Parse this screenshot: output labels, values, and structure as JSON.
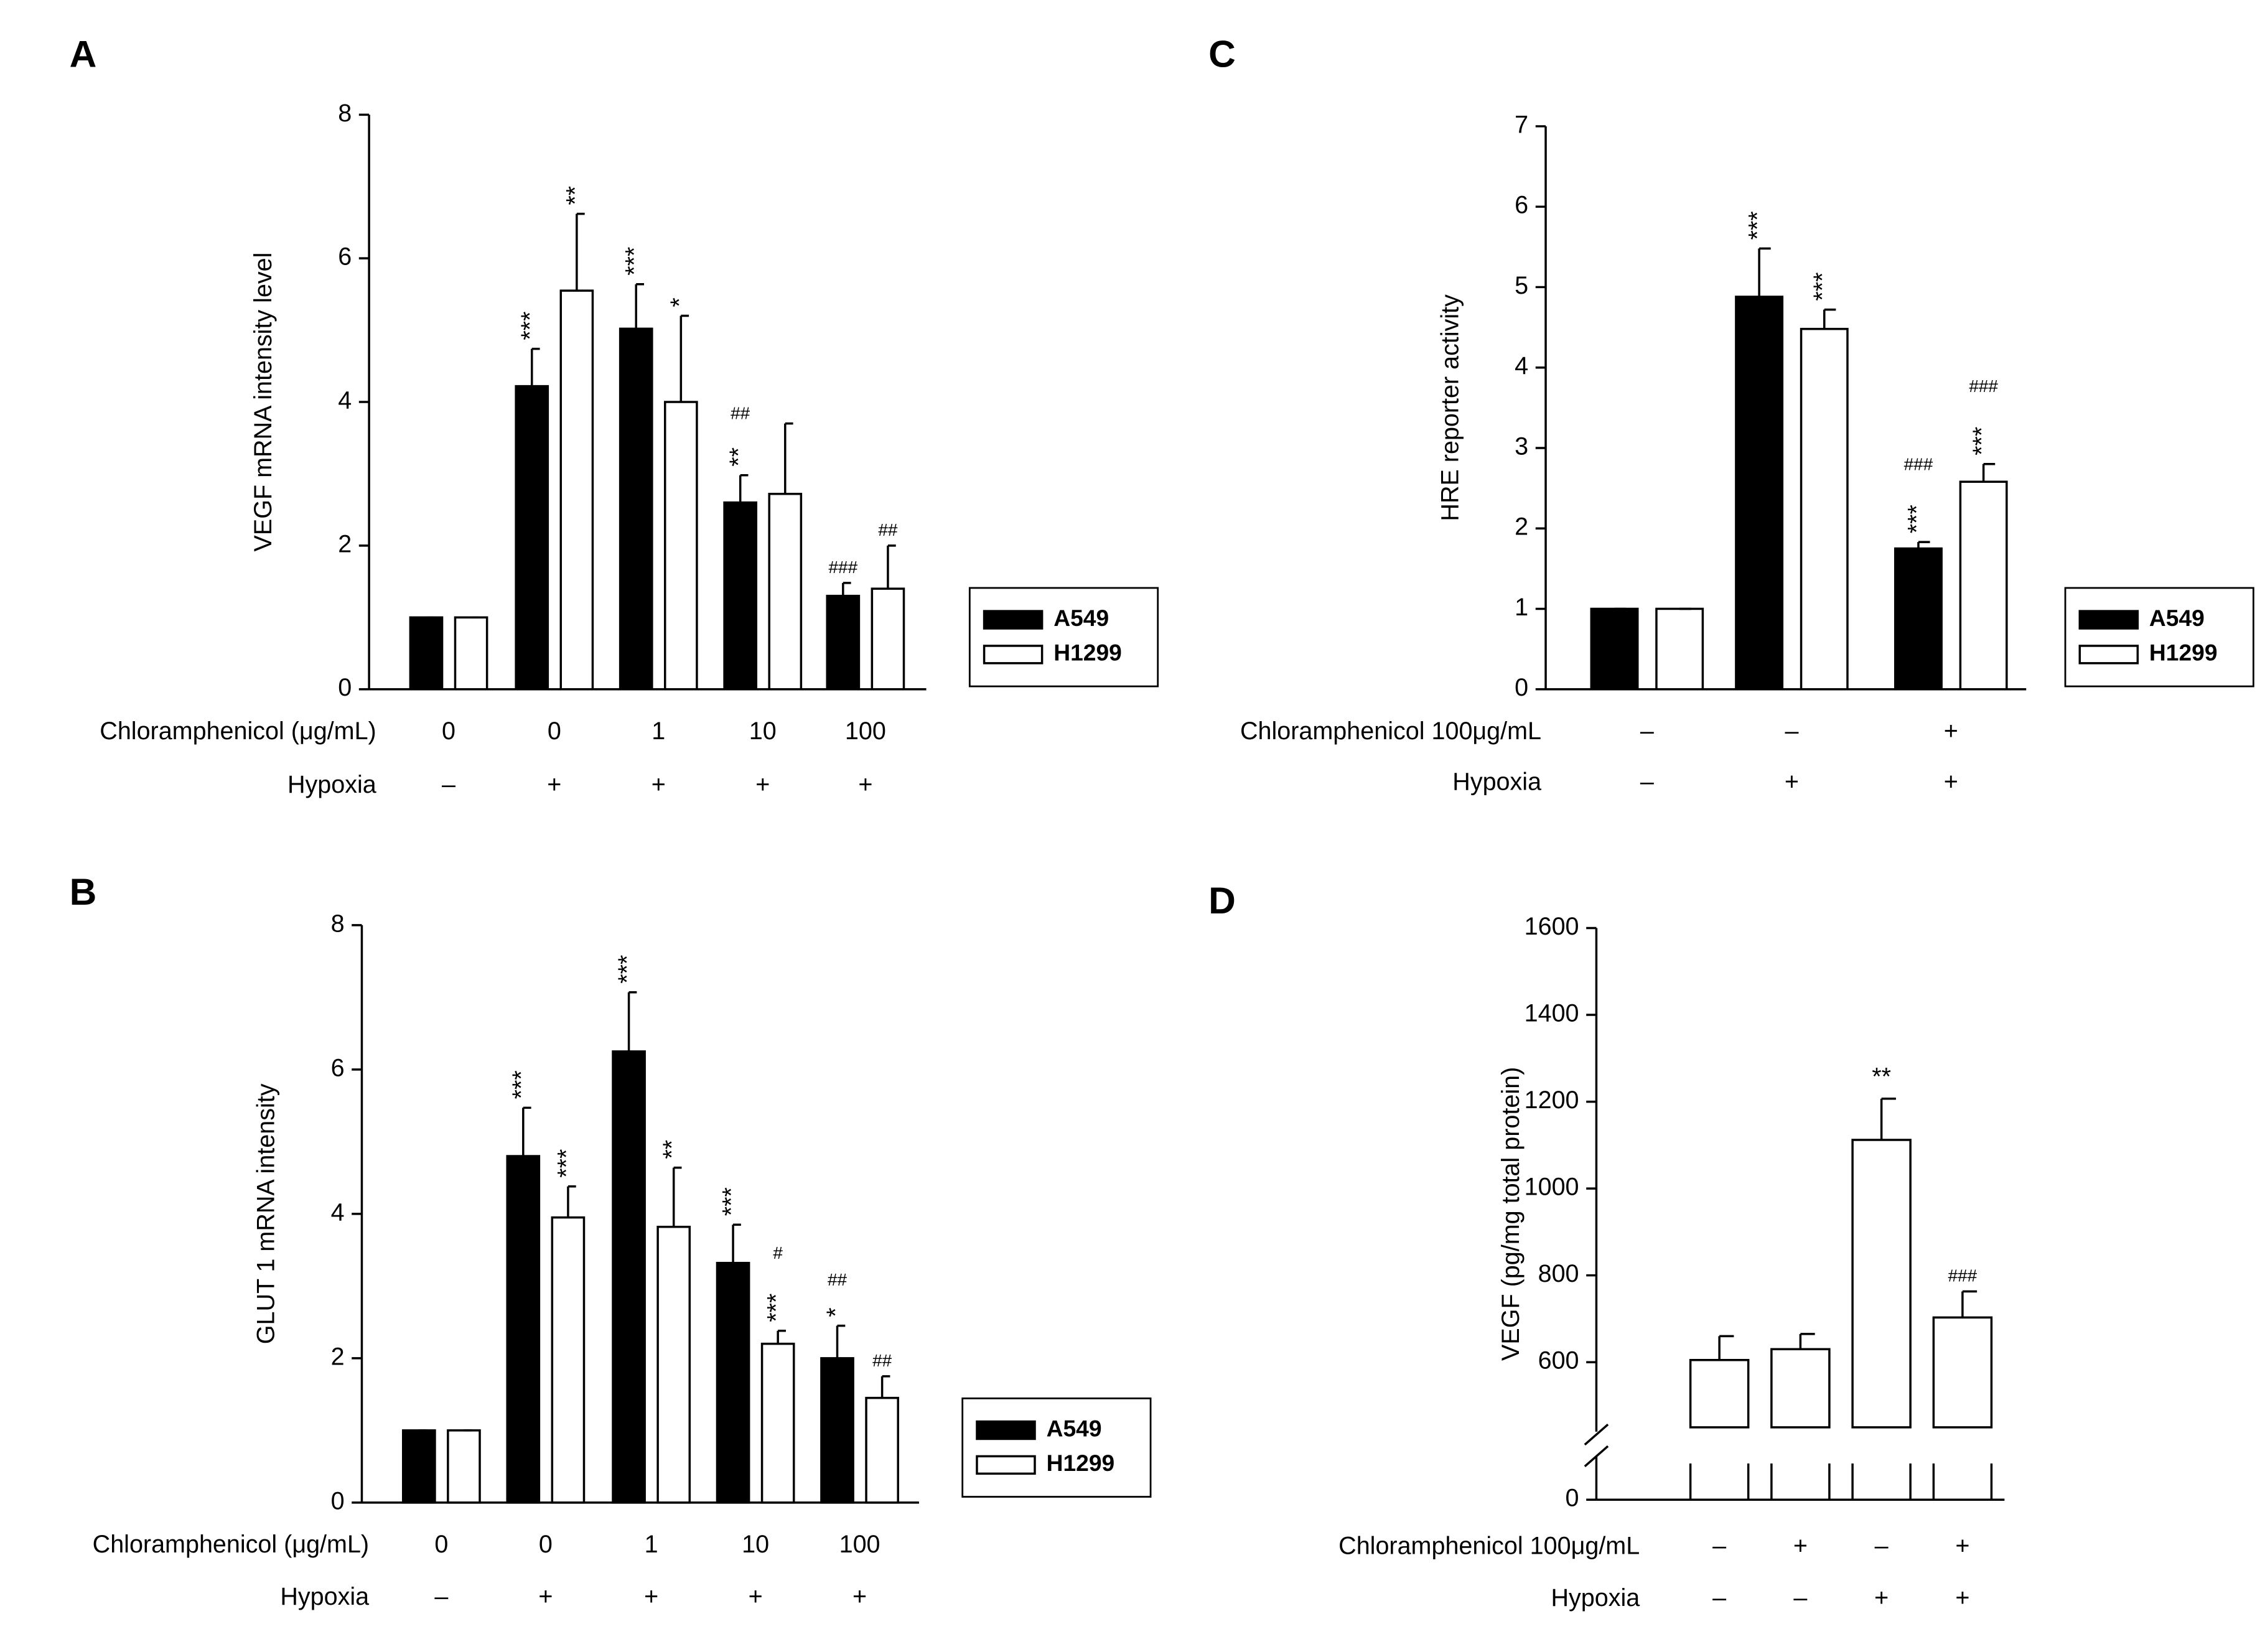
{
  "chart_data": [
    {
      "type": "bar",
      "panel": "A",
      "ylabel": "VEGF mRNA intensity level",
      "ylim": [
        0,
        8
      ],
      "yticks": [
        0,
        2,
        4,
        6,
        8
      ],
      "legend": true,
      "rotated_marks": true,
      "condition_rows": [
        {
          "label": "Chloramphenicol (μg/mL)",
          "values": [
            "0",
            "0",
            "1",
            "10",
            "100"
          ]
        },
        {
          "label": "Hypoxia",
          "values": [
            "–",
            "+",
            "+",
            "+",
            "+"
          ]
        }
      ],
      "series": [
        {
          "name": "A549",
          "color": "#000000",
          "values": [
            1,
            4.22,
            5.02,
            2.6,
            1.3
          ],
          "errors": [
            0,
            0.52,
            0.62,
            0.38,
            0.18
          ],
          "stars": [
            null,
            "***",
            "***",
            "**",
            null
          ],
          "hashes": [
            null,
            null,
            null,
            "##",
            "###"
          ]
        },
        {
          "name": "H1299",
          "color": "#ffffff",
          "values": [
            1,
            5.55,
            4.0,
            2.72,
            1.4
          ],
          "errors": [
            0,
            1.07,
            1.2,
            0.98,
            0.6
          ],
          "stars": [
            null,
            "**",
            "*",
            null,
            null
          ],
          "hashes": [
            null,
            null,
            null,
            null,
            "##"
          ]
        }
      ]
    },
    {
      "type": "bar",
      "panel": "B",
      "ylabel": "GLUT 1 mRNA intensity",
      "ylim": [
        0,
        8
      ],
      "yticks": [
        0,
        2,
        4,
        6,
        8
      ],
      "legend": true,
      "rotated_marks": true,
      "condition_rows": [
        {
          "label": "Chloramphenicol (μg/mL)",
          "values": [
            "0",
            "0",
            "1",
            "10",
            "100"
          ]
        },
        {
          "label": "Hypoxia",
          "values": [
            "–",
            "+",
            "+",
            "+",
            "+"
          ]
        }
      ],
      "series": [
        {
          "name": "A549",
          "color": "#000000",
          "values": [
            1,
            4.8,
            6.25,
            3.32,
            2.0
          ],
          "errors": [
            0,
            0.67,
            0.82,
            0.53,
            0.45
          ],
          "stars": [
            null,
            "***",
            "***",
            "***",
            "*"
          ],
          "hashes": [
            null,
            null,
            null,
            null,
            "##"
          ]
        },
        {
          "name": "H1299",
          "color": "#ffffff",
          "values": [
            1,
            3.95,
            3.82,
            2.2,
            1.45
          ],
          "errors": [
            0,
            0.43,
            0.82,
            0.18,
            0.3
          ],
          "stars": [
            null,
            "***",
            "**",
            "***",
            null
          ],
          "hashes": [
            null,
            null,
            null,
            "#",
            "##"
          ]
        }
      ]
    },
    {
      "type": "bar",
      "panel": "C",
      "ylabel": "HRE reporter activity",
      "ylim": [
        0,
        7
      ],
      "yticks": [
        0,
        1,
        2,
        3,
        4,
        5,
        6,
        7
      ],
      "legend": true,
      "rotated_marks": true,
      "condition_rows": [
        {
          "label": "Chloramphenicol 100μg/mL",
          "values": [
            "–",
            "–",
            "+"
          ]
        },
        {
          "label": "Hypoxia",
          "values": [
            "–",
            "+",
            "+"
          ]
        }
      ],
      "series": [
        {
          "name": "A549",
          "color": "#000000",
          "values": [
            1,
            4.88,
            1.75
          ],
          "errors": [
            0,
            0.6,
            0.08
          ],
          "stars": [
            null,
            "***",
            "***"
          ],
          "hashes": [
            null,
            null,
            "###"
          ]
        },
        {
          "name": "H1299",
          "color": "#ffffff",
          "values": [
            1,
            4.48,
            2.58
          ],
          "errors": [
            0,
            0.24,
            0.22
          ],
          "stars": [
            null,
            "***",
            "***"
          ],
          "hashes": [
            null,
            null,
            "###"
          ]
        }
      ]
    },
    {
      "type": "bar",
      "panel": "D",
      "ylabel": "VEGF (pg/mg total protein)",
      "ylim": [
        450,
        1600
      ],
      "yticks": [
        0,
        600,
        800,
        1000,
        1200,
        1400,
        1600
      ],
      "axis_break": true,
      "legend": false,
      "rotated_marks": false,
      "condition_rows": [
        {
          "label": "Chloramphenicol 100μg/mL",
          "values": [
            "–",
            "+",
            "–",
            "+"
          ]
        },
        {
          "label": "Hypoxia",
          "values": [
            "–",
            "–",
            "+",
            "+"
          ]
        }
      ],
      "series": [
        {
          "color": "#ffffff",
          "values": [
            605,
            630,
            1112,
            703
          ],
          "errors": [
            55,
            35,
            95,
            60
          ],
          "stars": [
            null,
            null,
            "**",
            null
          ],
          "hashes": [
            null,
            null,
            null,
            "###"
          ]
        }
      ]
    }
  ]
}
